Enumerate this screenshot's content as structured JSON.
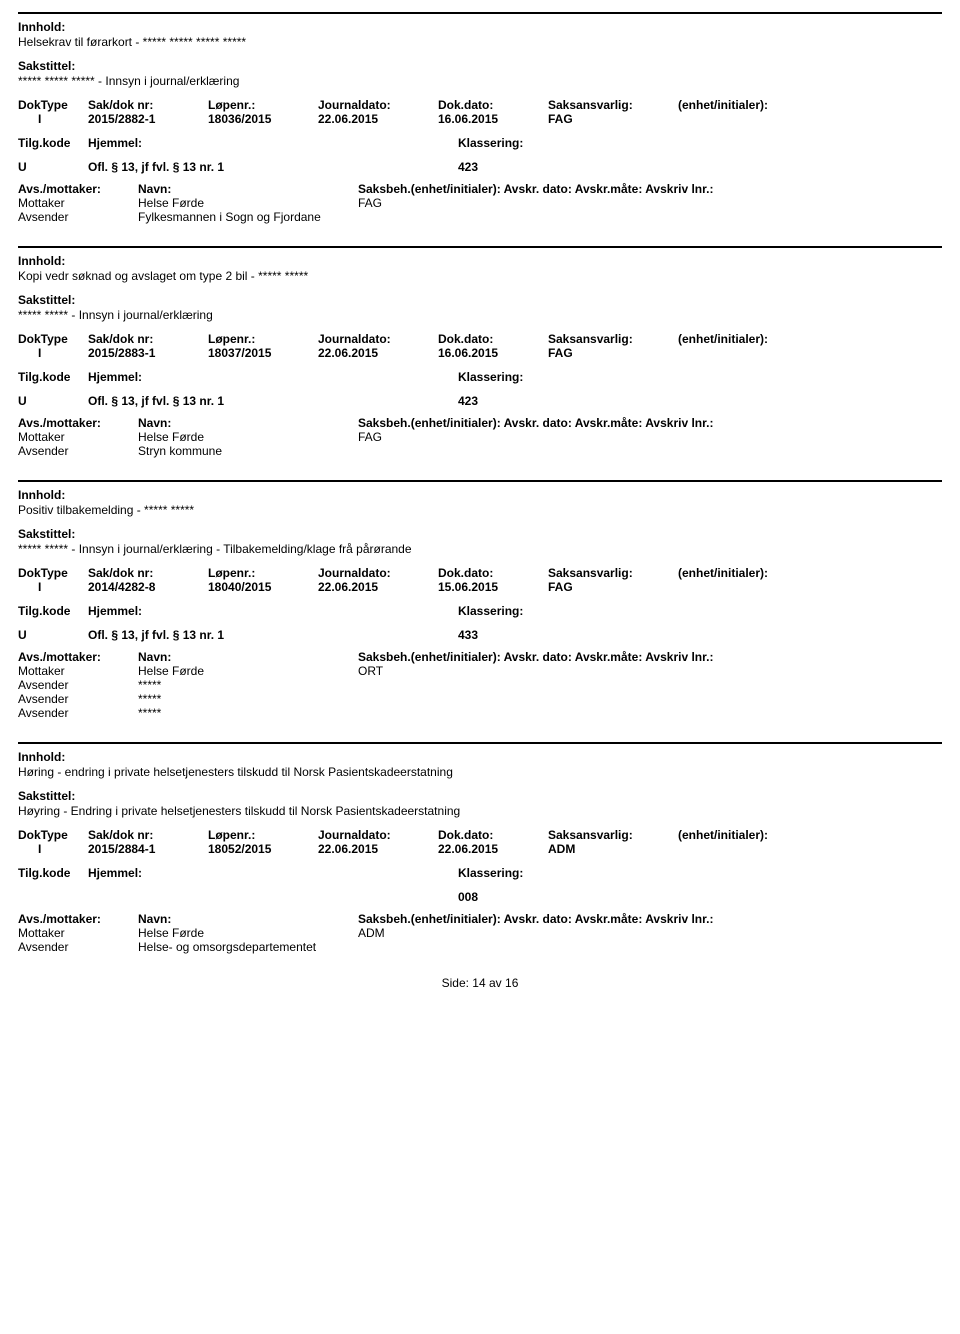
{
  "labels": {
    "innhold": "Innhold:",
    "sakstittel": "Sakstittel:",
    "doktype": "DokType",
    "saknr": "Sak/dok nr:",
    "lopenr": "Løpenr.:",
    "journaldato": "Journaldato:",
    "dokdato": "Dok.dato:",
    "saksansvarlig": "Saksansvarlig:",
    "enhet": "(enhet/initialer):",
    "tilgkode": "Tilg.kode",
    "hjemmel": "Hjemmel:",
    "klassering": "Klassering:",
    "avsmottaker": "Avs./mottaker:",
    "navn": "Navn:",
    "saksbeh_line": "Saksbeh.(enhet/initialer): Avskr. dato:  Avskr.måte:  Avskriv lnr.:"
  },
  "footer": {
    "side_label": "Side:",
    "page_cur": "14",
    "page_sep": "av",
    "page_total": "16"
  },
  "records": [
    {
      "innhold": "Helsekrav til førarkort - ***** ***** ***** *****",
      "sakstittel": "***** ***** ***** - Innsyn i journal/erklæring",
      "doktype": "I",
      "saknr": "2015/2882-1",
      "lopenr": "18036/2015",
      "journaldato": "22.06.2015",
      "dokdato": "16.06.2015",
      "saksansvarlig": "FAG",
      "tilgkode": "U",
      "hjemmel": "Ofl. § 13, jf fvl. § 13 nr. 1",
      "klassering": "423",
      "parties": [
        {
          "role": "Mottaker",
          "name": "Helse Førde",
          "unit": "FAG"
        },
        {
          "role": "Avsender",
          "name": "Fylkesmannen i Sogn og Fjordane",
          "unit": ""
        }
      ]
    },
    {
      "innhold": "Kopi vedr søknad og avslaget om type 2 bil - ***** *****",
      "sakstittel": "***** ***** - Innsyn i journal/erklæring",
      "doktype": "I",
      "saknr": "2015/2883-1",
      "lopenr": "18037/2015",
      "journaldato": "22.06.2015",
      "dokdato": "16.06.2015",
      "saksansvarlig": "FAG",
      "tilgkode": "U",
      "hjemmel": "Ofl. § 13, jf fvl. § 13 nr. 1",
      "klassering": "423",
      "parties": [
        {
          "role": "Mottaker",
          "name": "Helse Førde",
          "unit": "FAG"
        },
        {
          "role": "Avsender",
          "name": "Stryn kommune",
          "unit": ""
        }
      ]
    },
    {
      "innhold": "Positiv tilbakemelding - ***** *****",
      "sakstittel": "***** ***** - Innsyn i journal/erklæring - Tilbakemelding/klage frå pårørande",
      "doktype": "I",
      "saknr": "2014/4282-8",
      "lopenr": "18040/2015",
      "journaldato": "22.06.2015",
      "dokdato": "15.06.2015",
      "saksansvarlig": "FAG",
      "tilgkode": "U",
      "hjemmel": "Ofl. § 13, jf fvl. § 13 nr. 1",
      "klassering": "433",
      "parties": [
        {
          "role": "Mottaker",
          "name": "Helse Førde",
          "unit": "ORT"
        },
        {
          "role": "Avsender",
          "name": "*****",
          "unit": ""
        },
        {
          "role": "Avsender",
          "name": "*****",
          "unit": ""
        },
        {
          "role": "Avsender",
          "name": "*****",
          "unit": ""
        }
      ]
    },
    {
      "innhold": "Høring - endring i private helsetjenesters tilskudd til Norsk Pasientskadeerstatning",
      "sakstittel": "Høyring - Endring i private helsetjenesters tilskudd til Norsk Pasientskadeerstatning",
      "doktype": "I",
      "saknr": "2015/2884-1",
      "lopenr": "18052/2015",
      "journaldato": "22.06.2015",
      "dokdato": "22.06.2015",
      "saksansvarlig": "ADM",
      "tilgkode": "",
      "hjemmel": "",
      "klassering": "008",
      "parties": [
        {
          "role": "Mottaker",
          "name": "Helse Førde",
          "unit": "ADM"
        },
        {
          "role": "Avsender",
          "name": "Helse- og omsorgsdepartementet",
          "unit": ""
        }
      ]
    }
  ]
}
